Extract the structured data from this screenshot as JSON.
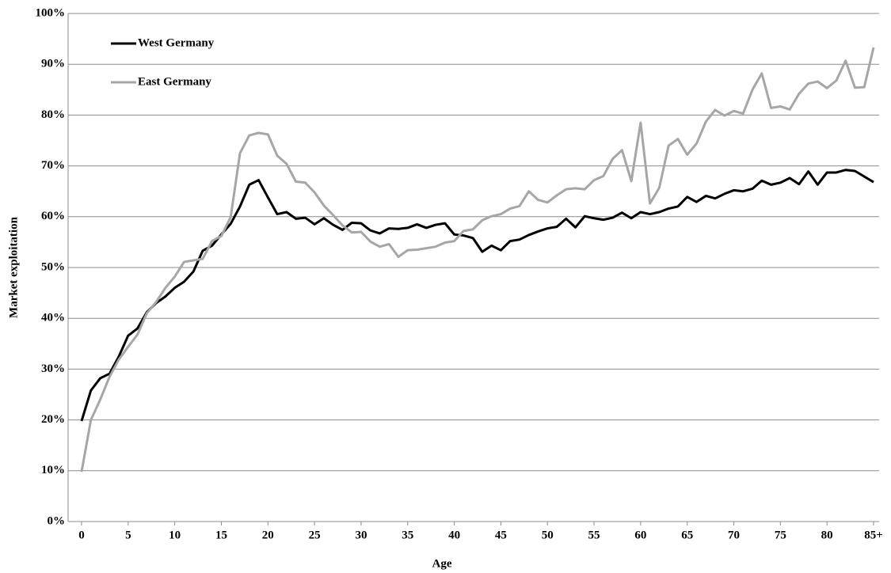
{
  "chart_data": {
    "type": "line",
    "x_label": "Age",
    "y_label": "Market exploitation",
    "x": [
      0,
      1,
      2,
      3,
      4,
      5,
      6,
      7,
      8,
      9,
      10,
      11,
      12,
      13,
      14,
      15,
      16,
      17,
      18,
      19,
      20,
      21,
      22,
      23,
      24,
      25,
      26,
      27,
      28,
      29,
      30,
      31,
      32,
      33,
      34,
      35,
      36,
      37,
      38,
      39,
      40,
      41,
      42,
      43,
      44,
      45,
      46,
      47,
      48,
      49,
      50,
      51,
      52,
      53,
      54,
      55,
      56,
      57,
      58,
      59,
      60,
      61,
      62,
      63,
      64,
      65,
      66,
      67,
      68,
      69,
      70,
      71,
      72,
      73,
      74,
      75,
      76,
      77,
      78,
      79,
      80,
      81,
      82,
      83,
      84,
      85
    ],
    "series": [
      {
        "name": "West Germany",
        "color": "#000000",
        "values": [
          19.8,
          25.8,
          28.2,
          29.1,
          32.5,
          36.6,
          38,
          41.2,
          43,
          44.3,
          46,
          47.2,
          49.2,
          53.3,
          54.3,
          56.5,
          58.6,
          62,
          66.3,
          67.2,
          63.8,
          60.5,
          60.9,
          59.6,
          59.8,
          58.5,
          59.7,
          58.4,
          57.4,
          58.8,
          58.7,
          57.3,
          56.7,
          57.7,
          57.6,
          57.8,
          58.5,
          57.8,
          58.4,
          58.7,
          56.5,
          56.3,
          55.8,
          53.1,
          54.3,
          53.4,
          55.2,
          55.5,
          56.4,
          57.1,
          57.7,
          58,
          59.6,
          57.9,
          60.1,
          59.7,
          59.4,
          59.8,
          60.8,
          59.7,
          60.9,
          60.5,
          60.9,
          61.6,
          62,
          63.9,
          62.9,
          64.1,
          63.6,
          64.5,
          65.2,
          65,
          65.5,
          67.1,
          66.3,
          66.7,
          67.6,
          66.4,
          68.9,
          66.3,
          68.7,
          68.7,
          69.2,
          69,
          67.9,
          66.8
        ]
      },
      {
        "name": "East Germany",
        "color": "#a6a6a6",
        "values": [
          9.8,
          20,
          24,
          28.5,
          31.9,
          34.4,
          36.8,
          41,
          43.2,
          46,
          48.2,
          51.1,
          51.4,
          51.7,
          55.2,
          56.2,
          59.9,
          72.5,
          76,
          76.5,
          76.2,
          72,
          70.4,
          66.9,
          66.7,
          64.8,
          62.2,
          60.3,
          58.3,
          56.9,
          57,
          55.1,
          54.1,
          54.6,
          52.1,
          53.4,
          53.5,
          53.8,
          54.1,
          54.9,
          55.2,
          57.2,
          57.5,
          59.3,
          60.1,
          60.5,
          61.6,
          62.1,
          65,
          63.3,
          62.8,
          64.2,
          65.4,
          65.6,
          65.4,
          67.2,
          68,
          71.4,
          73.1,
          67,
          78.5,
          62.6,
          65.7,
          74,
          75.3,
          72.2,
          74.4,
          78.7,
          81,
          79.9,
          80.8,
          80.3,
          85,
          88.2,
          81.4,
          81.7,
          81.1,
          84.2,
          86.2,
          86.6,
          85.3,
          86.8,
          90.7,
          85.4,
          85.5,
          93.3
        ]
      }
    ],
    "xlim": [
      0,
      85
    ],
    "xticks": [
      0,
      5,
      10,
      15,
      20,
      25,
      30,
      35,
      40,
      45,
      50,
      55,
      60,
      65,
      70,
      75,
      80,
      {
        "value": 85,
        "label": "85+"
      }
    ],
    "ylim": [
      0,
      100
    ],
    "yticks": [
      {
        "value": 0,
        "label": "0%"
      },
      {
        "value": 10,
        "label": "10%"
      },
      {
        "value": 20,
        "label": "20%"
      },
      {
        "value": 30,
        "label": "30%"
      },
      {
        "value": 40,
        "label": "40%"
      },
      {
        "value": 50,
        "label": "50%"
      },
      {
        "value": 60,
        "label": "60%"
      },
      {
        "value": 70,
        "label": "70%"
      },
      {
        "value": 80,
        "label": "80%"
      },
      {
        "value": 90,
        "label": "90%"
      },
      {
        "value": 100,
        "label": "100%"
      }
    ],
    "grid": true,
    "legend": "top-left"
  }
}
